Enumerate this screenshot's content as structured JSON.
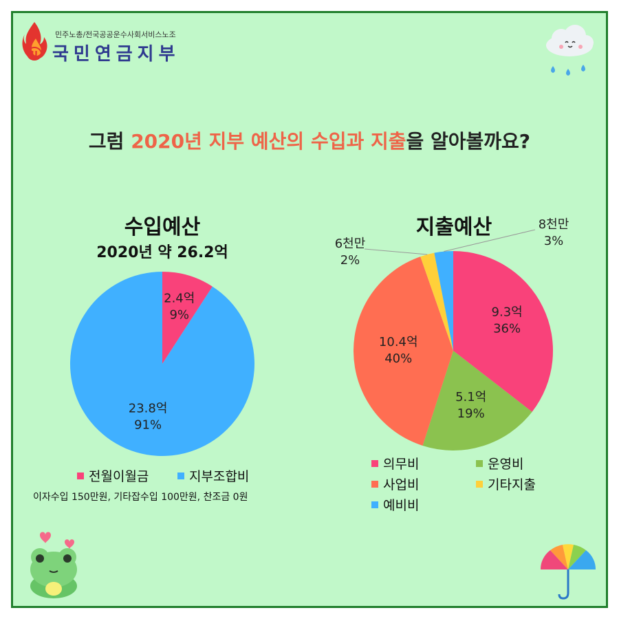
{
  "brand": {
    "subtitle": "민주노총/전국공공운수사회서비스노조",
    "name": "국민연금지부"
  },
  "headline": {
    "part1": "그럼 ",
    "accent1": "2020년 지부 예산의 수입과 지출",
    "part2": "을 알아볼까요?"
  },
  "colors": {
    "pink": "#f9427a",
    "blue": "#40b0ff",
    "green": "#8bc24f",
    "orange": "#ff6e52",
    "yellow": "#ffd03a"
  },
  "chart_data": [
    {
      "type": "pie",
      "title": "수입예산",
      "subtitle": "2020년 약 26.2억",
      "slices": [
        {
          "name": "전월이월금",
          "value": 2.4,
          "unit": "억",
          "percent": 9,
          "label_amount": "2.4억",
          "label_percent": "9%",
          "color": "#f9427a"
        },
        {
          "name": "지부조합비",
          "value": 23.8,
          "unit": "억",
          "percent": 91,
          "label_amount": "23.8억",
          "label_percent": "91%",
          "color": "#40b0ff"
        }
      ],
      "legend": [
        "전월이월금",
        "지부조합비"
      ],
      "note": "이자수입 150만원, 기타잡수입 100만원, 찬조금 0원"
    },
    {
      "type": "pie",
      "title": "지출예산",
      "slices": [
        {
          "name": "의무비",
          "value": 9.3,
          "unit": "억",
          "percent": 36,
          "label_amount": "9.3억",
          "label_percent": "36%",
          "color": "#f9427a"
        },
        {
          "name": "운영비",
          "value": 5.1,
          "unit": "억",
          "percent": 19,
          "label_amount": "5.1억",
          "label_percent": "19%",
          "color": "#8bc24f"
        },
        {
          "name": "사업비",
          "value": 10.4,
          "unit": "억",
          "percent": 40,
          "label_amount": "10.4억",
          "label_percent": "40%",
          "color": "#ff6e52"
        },
        {
          "name": "기타지출",
          "value": 0.6,
          "unit": "억",
          "percent": 2,
          "label_amount": "6천만",
          "label_percent": "2%",
          "color": "#ffd03a"
        },
        {
          "name": "예비비",
          "value": 0.8,
          "unit": "억",
          "percent": 3,
          "label_amount": "8천만",
          "label_percent": "3%",
          "color": "#40b0ff"
        }
      ],
      "legend": [
        "의무비",
        "운영비",
        "사업비",
        "기타지출",
        "예비비"
      ]
    }
  ]
}
